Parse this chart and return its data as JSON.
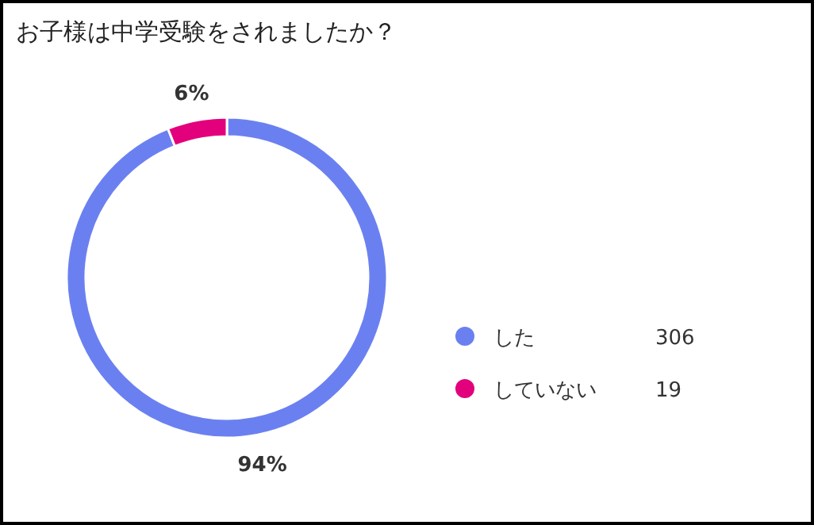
{
  "chart_data": {
    "type": "donut",
    "title": "お子様は中学受験をされましたか？",
    "categories": [
      "した",
      "していない"
    ],
    "values": [
      94,
      6
    ],
    "annotations": [
      "306",
      "19"
    ],
    "value_labels": [
      "94%",
      "6%"
    ],
    "colors": [
      "#6b80f0",
      "#e2007c"
    ],
    "legend": "right"
  }
}
